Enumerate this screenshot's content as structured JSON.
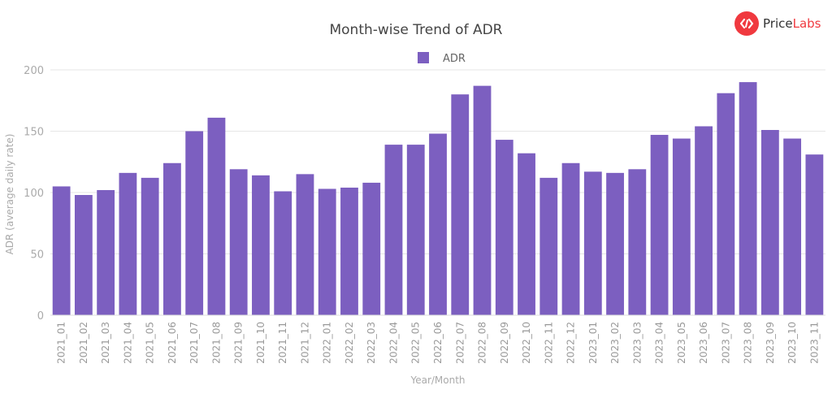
{
  "brand": {
    "name_part1": "Price",
    "name_part2": "Labs",
    "accent_color": "#f0393f",
    "icon": "pricelabs-logo-icon"
  },
  "chart_data": {
    "type": "bar",
    "title": "Month-wise Trend of ADR",
    "xlabel": "Year/Month",
    "ylabel": "ADR (average daily rate)",
    "ylim": [
      0,
      200
    ],
    "yticks": [
      0,
      50,
      100,
      150,
      200
    ],
    "grid": true,
    "legend_position": "top-center",
    "bar_color": "#7c5fc0",
    "categories": [
      "2021_01",
      "2021_02",
      "2021_03",
      "2021_04",
      "2021_05",
      "2021_06",
      "2021_07",
      "2021_08",
      "2021_09",
      "2021_10",
      "2021_11",
      "2021_12",
      "2022_01",
      "2022_02",
      "2022_03",
      "2022_04",
      "2022_05",
      "2022_06",
      "2022_07",
      "2022_08",
      "2022_09",
      "2022_10",
      "2022_11",
      "2022_12",
      "2023_01",
      "2023_02",
      "2023_03",
      "2023_04",
      "2023_05",
      "2023_06",
      "2023_07",
      "2023_08",
      "2023_09",
      "2023_10",
      "2023_11"
    ],
    "series": [
      {
        "name": "ADR",
        "values": [
          105,
          98,
          102,
          116,
          112,
          124,
          150,
          161,
          119,
          114,
          101,
          115,
          103,
          104,
          108,
          139,
          139,
          148,
          180,
          187,
          143,
          132,
          112,
          124,
          117,
          116,
          119,
          147,
          144,
          154,
          181,
          190,
          151,
          144,
          131
        ]
      }
    ]
  }
}
